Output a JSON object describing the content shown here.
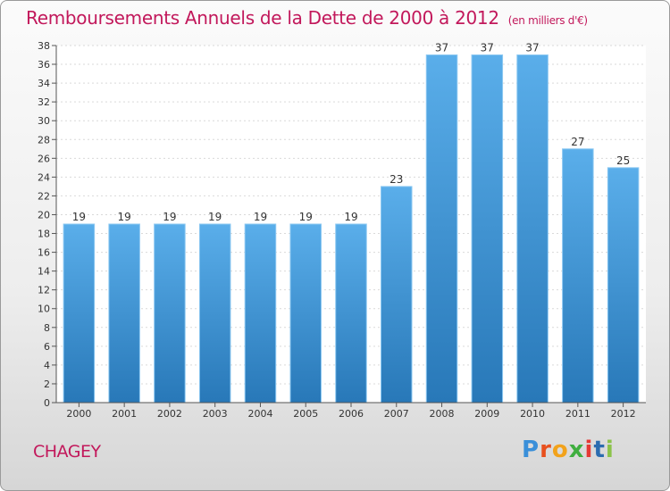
{
  "header": {
    "title": "Remboursements Annuels de la Dette de 2000 à 2012",
    "unit": "(en milliers d'€)"
  },
  "footer": {
    "town": "CHAGEY",
    "logo": "Proxiti",
    "logo_colors": [
      "#3a8fd9",
      "#e8501e",
      "#f2a21b",
      "#3fae3f",
      "#e53935",
      "#2b6cb0",
      "#8bc34a"
    ]
  },
  "chart_data": {
    "type": "bar",
    "categories": [
      "2000",
      "2001",
      "2002",
      "2003",
      "2004",
      "2005",
      "2006",
      "2007",
      "2008",
      "2009",
      "2010",
      "2011",
      "2012"
    ],
    "values": [
      19,
      19,
      19,
      19,
      19,
      19,
      19,
      23,
      37,
      37,
      37,
      27,
      25
    ],
    "ylim": [
      0,
      38
    ],
    "yticks": [
      0,
      2,
      4,
      6,
      8,
      10,
      12,
      14,
      16,
      18,
      20,
      22,
      24,
      26,
      28,
      30,
      32,
      34,
      36,
      38
    ],
    "grid": true,
    "bar_color_top": "#5aaeea",
    "bar_color_bottom": "#2878b8",
    "label_color": "#333333"
  }
}
